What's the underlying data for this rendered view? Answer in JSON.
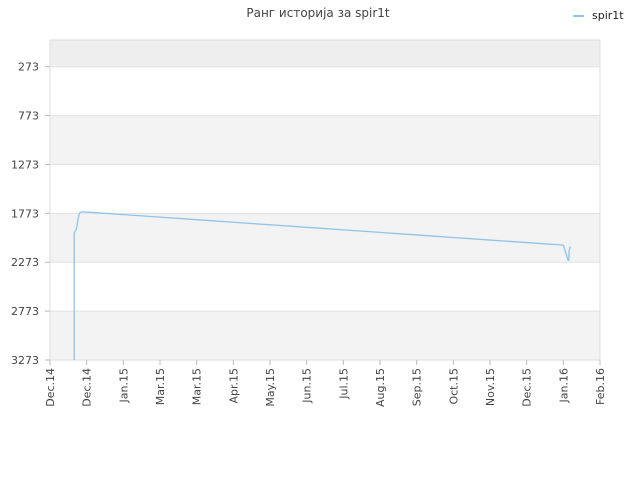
{
  "chart_data": {
    "type": "line",
    "title": "Ранг историја за spir1t",
    "legend": {
      "position": "top-right",
      "entries": [
        "spir1t"
      ]
    },
    "xlabel": "",
    "ylabel": "",
    "y_inverted": true,
    "ylim": [
      3273,
      0
    ],
    "y_ticks": [
      273,
      773,
      1273,
      1773,
      2273,
      2773,
      3273
    ],
    "x_ticks": [
      "Dec.14",
      "Dec.14",
      "Jan.15",
      "Mar.15",
      "Mar.15",
      "Apr.15",
      "May.15",
      "Jun.15",
      "Jul.15",
      "Aug.15",
      "Sep.15",
      "Oct.15",
      "Nov.15",
      "Dec.15",
      "Jan.16",
      "Feb.16"
    ],
    "grid": true,
    "series": [
      {
        "name": "spir1t",
        "color": "#8fc4ea",
        "points": [
          {
            "t": 0.66,
            "rank": 3273
          },
          {
            "t": 0.66,
            "rank": 1973
          },
          {
            "t": 0.72,
            "rank": 1933
          },
          {
            "t": 0.76,
            "rank": 1843
          },
          {
            "t": 0.8,
            "rank": 1773
          },
          {
            "t": 0.86,
            "rank": 1758
          },
          {
            "t": 1.0,
            "rank": 1760
          },
          {
            "t": 2.0,
            "rank": 1786
          },
          {
            "t": 3.0,
            "rank": 1812
          },
          {
            "t": 4.0,
            "rank": 1838
          },
          {
            "t": 5.0,
            "rank": 1864
          },
          {
            "t": 6.0,
            "rank": 1890
          },
          {
            "t": 7.0,
            "rank": 1916
          },
          {
            "t": 8.0,
            "rank": 1942
          },
          {
            "t": 9.0,
            "rank": 1968
          },
          {
            "t": 10.0,
            "rank": 1994
          },
          {
            "t": 11.0,
            "rank": 2020
          },
          {
            "t": 12.0,
            "rank": 2046
          },
          {
            "t": 13.0,
            "rank": 2072
          },
          {
            "t": 14.0,
            "rank": 2098
          },
          {
            "t": 14.13,
            "rank": 2253
          },
          {
            "t": 14.15,
            "rank": 2253
          },
          {
            "t": 14.16,
            "rank": 2153
          },
          {
            "t": 14.19,
            "rank": 2113
          }
        ]
      }
    ]
  }
}
